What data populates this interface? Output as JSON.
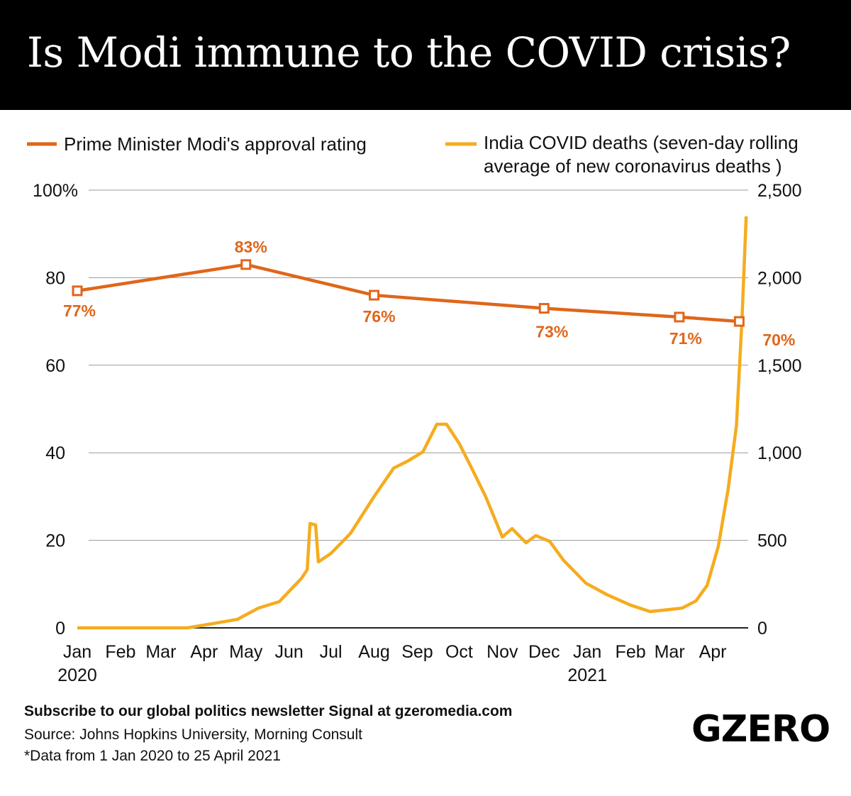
{
  "title": "Is Modi immune to the COVID crisis?",
  "colors": {
    "approval": "#e0661a",
    "deaths": "#f5ac1e",
    "title_bg": "#000000"
  },
  "chart_data": {
    "type": "line",
    "dual_axis": true,
    "legend": {
      "position": "top",
      "entries": [
        "Prime Minister Modi's approval rating",
        "India COVID deaths (seven-day rolling",
        "average of new coronavirus deaths )"
      ]
    },
    "left_axis": {
      "range": [
        0,
        100
      ],
      "ticks": [
        "0",
        "20",
        "40",
        "60",
        "80",
        "100%"
      ]
    },
    "right_axis": {
      "range": [
        0,
        2500
      ],
      "ticks": [
        "0",
        "500",
        "1,000",
        "1,500",
        "2,000",
        "2,500"
      ]
    },
    "x_ticks": [
      {
        "date": "2020-01-01",
        "label": "Jan",
        "year": "2020"
      },
      {
        "date": "2020-02-01",
        "label": "Feb"
      },
      {
        "date": "2020-03-01",
        "label": "Mar"
      },
      {
        "date": "2020-04-01",
        "label": "Apr"
      },
      {
        "date": "2020-05-01",
        "label": "May"
      },
      {
        "date": "2020-06-01",
        "label": "Jun"
      },
      {
        "date": "2020-07-01",
        "label": "Jul"
      },
      {
        "date": "2020-08-01",
        "label": "Aug"
      },
      {
        "date": "2020-09-01",
        "label": "Sep"
      },
      {
        "date": "2020-10-01",
        "label": "Oct"
      },
      {
        "date": "2020-11-01",
        "label": "Nov"
      },
      {
        "date": "2020-12-01",
        "label": "Dec"
      },
      {
        "date": "2021-01-01",
        "label": "Jan",
        "year": "2021"
      },
      {
        "date": "2021-02-01",
        "label": "Feb"
      },
      {
        "date": "2021-03-01",
        "label": "Mar"
      },
      {
        "date": "2021-04-01",
        "label": "Apr"
      }
    ],
    "grid": true,
    "series": [
      {
        "name": "Prime Minister Modi's approval rating",
        "axis": "left",
        "markers": true,
        "points": [
          {
            "date": "2020-01-01",
            "value": 77,
            "label": "77%"
          },
          {
            "date": "2020-05-01",
            "value": 83,
            "label": "83%"
          },
          {
            "date": "2020-08-01",
            "value": 76,
            "label": "76%"
          },
          {
            "date": "2020-12-01",
            "value": 73,
            "label": "73%"
          },
          {
            "date": "2021-03-08",
            "value": 71,
            "label": "71%"
          },
          {
            "date": "2021-04-20",
            "value": 70,
            "label": "70%"
          }
        ]
      },
      {
        "name": "India COVID deaths (seven-day rolling average of new coronavirus deaths )",
        "axis": "right",
        "points": [
          [
            "2020-01-01",
            0
          ],
          [
            "2020-03-20",
            0
          ],
          [
            "2020-04-10",
            28
          ],
          [
            "2020-04-25",
            49
          ],
          [
            "2020-05-10",
            113
          ],
          [
            "2020-05-25",
            150
          ],
          [
            "2020-06-10",
            284
          ],
          [
            "2020-06-14",
            332
          ],
          [
            "2020-06-16",
            596
          ],
          [
            "2020-06-20",
            588
          ],
          [
            "2020-06-22",
            377
          ],
          [
            "2020-07-01",
            425
          ],
          [
            "2020-07-15",
            539
          ],
          [
            "2020-08-01",
            750
          ],
          [
            "2020-08-15",
            912
          ],
          [
            "2020-08-25",
            952
          ],
          [
            "2020-09-05",
            1005
          ],
          [
            "2020-09-15",
            1163
          ],
          [
            "2020-09-22",
            1163
          ],
          [
            "2020-10-01",
            1054
          ],
          [
            "2020-10-10",
            912
          ],
          [
            "2020-10-20",
            750
          ],
          [
            "2020-11-01",
            519
          ],
          [
            "2020-11-08",
            567
          ],
          [
            "2020-11-18",
            486
          ],
          [
            "2020-11-25",
            527
          ],
          [
            "2020-12-05",
            494
          ],
          [
            "2020-12-15",
            385
          ],
          [
            "2020-12-31",
            255
          ],
          [
            "2021-01-15",
            190
          ],
          [
            "2021-02-01",
            130
          ],
          [
            "2021-02-15",
            93
          ],
          [
            "2021-03-01",
            105
          ],
          [
            "2021-03-10",
            113
          ],
          [
            "2021-03-20",
            154
          ],
          [
            "2021-03-28",
            243
          ],
          [
            "2021-04-05",
            466
          ],
          [
            "2021-04-12",
            790
          ],
          [
            "2021-04-18",
            1155
          ],
          [
            "2021-04-22",
            1763
          ],
          [
            "2021-04-25",
            2350
          ]
        ]
      }
    ]
  },
  "footer": {
    "subscribe": "Subscribe to our global politics newsletter Signal at gzeromedia.com",
    "source": "Source: Johns Hopkins University, Morning Consult",
    "note": "*Data from 1 Jan 2020 to 25 April 2021",
    "logo": "GZERO"
  }
}
